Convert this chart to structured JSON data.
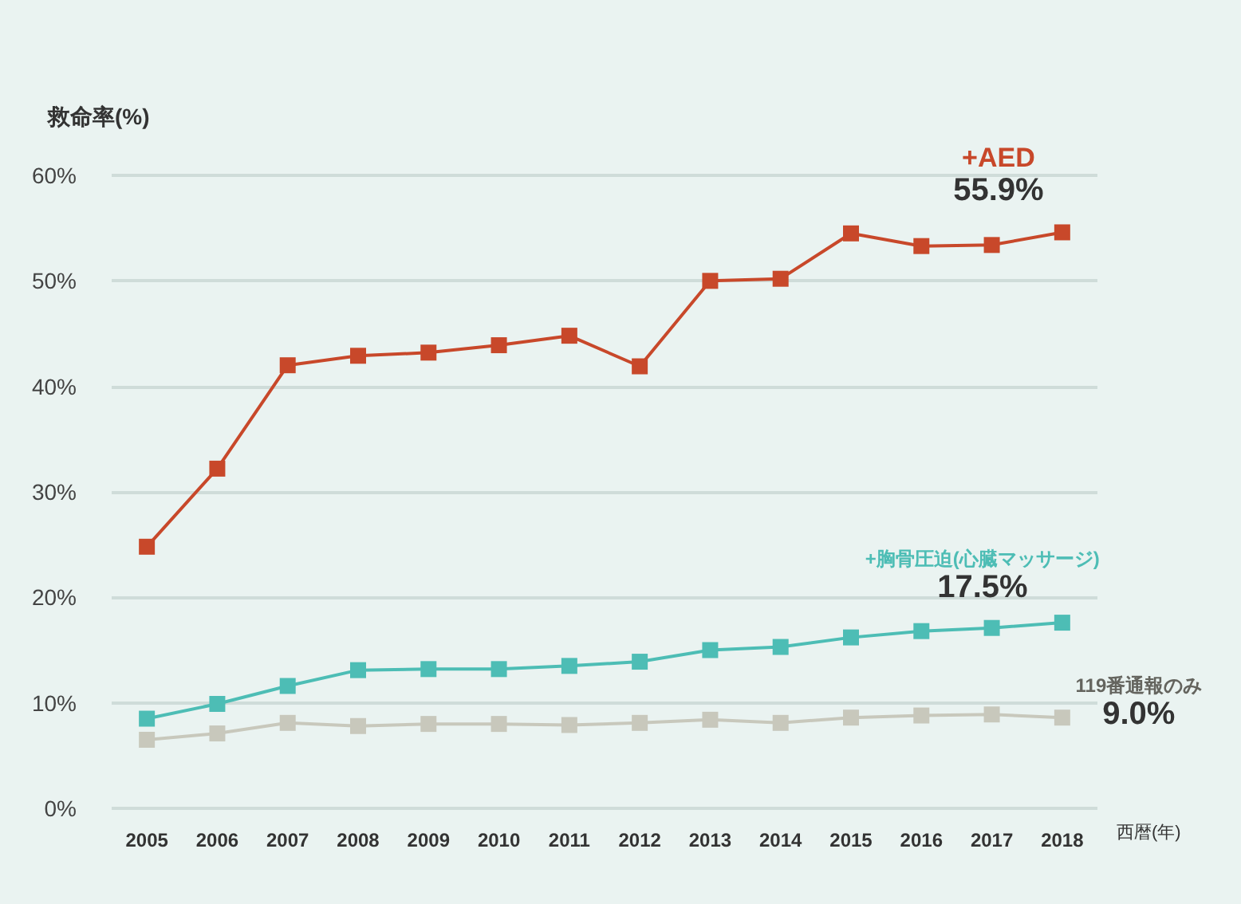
{
  "chart_data": {
    "type": "line",
    "ylabel": "救命率(%)",
    "xlabel": "西暦(年)",
    "categories": [
      "2005",
      "2006",
      "2007",
      "2008",
      "2009",
      "2010",
      "2011",
      "2012",
      "2013",
      "2014",
      "2015",
      "2016",
      "2017",
      "2018"
    ],
    "series": [
      {
        "name": "+AED",
        "color": "#c8482a",
        "values": [
          24.8,
          32.2,
          42.0,
          42.9,
          43.2,
          43.9,
          44.8,
          41.9,
          50.0,
          50.2,
          54.5,
          53.3,
          53.4,
          54.6
        ]
      },
      {
        "name": "+胸骨圧迫(心臓マッサージ)",
        "color": "#4dbdb5",
        "values": [
          8.5,
          9.9,
          11.6,
          13.1,
          13.2,
          13.2,
          13.5,
          13.9,
          15.0,
          15.3,
          16.2,
          16.8,
          17.1,
          17.6
        ]
      },
      {
        "name": "119番通報のみ",
        "color": "#c8c8bc",
        "values": [
          6.5,
          7.1,
          8.1,
          7.8,
          8.0,
          8.0,
          7.9,
          8.1,
          8.4,
          8.1,
          8.6,
          8.8,
          8.9,
          8.6
        ]
      }
    ],
    "annotations": [
      "55.9%",
      "17.5%",
      "9.0%"
    ],
    "ylim": [
      0,
      60
    ],
    "yticks": [
      {
        "value": 0,
        "label": "0%"
      },
      {
        "value": 10,
        "label": "10%"
      },
      {
        "value": 20,
        "label": "20%"
      },
      {
        "value": 30,
        "label": "30%"
      },
      {
        "value": 40,
        "label": "40%"
      },
      {
        "value": 50,
        "label": "50%"
      },
      {
        "value": 60,
        "label": "60%"
      }
    ],
    "grid": "y",
    "legend": false,
    "marker": "square",
    "line_style": "solid"
  }
}
